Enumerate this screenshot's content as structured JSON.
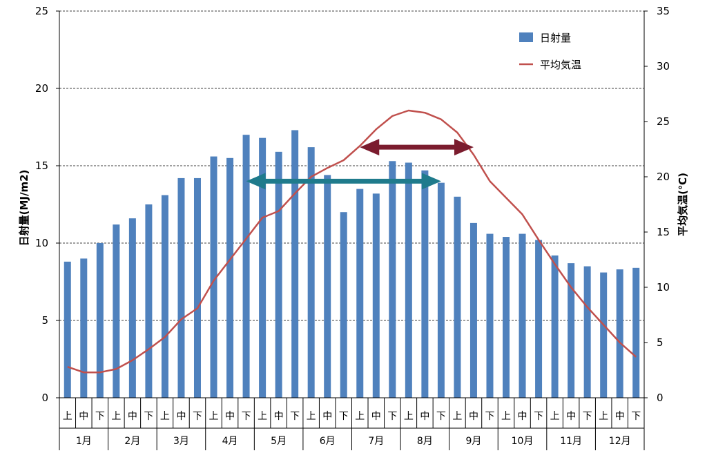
{
  "chart_data": {
    "type": "bar",
    "categories": [
      "上",
      "中",
      "下",
      "上",
      "中",
      "下",
      "上",
      "中",
      "下",
      "上",
      "中",
      "下",
      "上",
      "中",
      "下",
      "上",
      "中",
      "下",
      "上",
      "中",
      "下",
      "上",
      "中",
      "下",
      "上",
      "中",
      "下",
      "上",
      "中",
      "下",
      "上",
      "中",
      "下",
      "上",
      "中",
      "下"
    ],
    "months": [
      "1月",
      "2月",
      "3月",
      "4月",
      "5月",
      "6月",
      "7月",
      "8月",
      "9月",
      "10月",
      "11月",
      "12月"
    ],
    "series": [
      {
        "name": "日射量",
        "type": "bar",
        "axis": "left",
        "color": "#4f81bd",
        "values": [
          8.8,
          9.0,
          10.0,
          11.2,
          11.6,
          12.5,
          13.1,
          14.2,
          14.2,
          15.6,
          15.5,
          17.0,
          16.8,
          15.9,
          17.3,
          16.2,
          14.4,
          12.0,
          13.5,
          13.2,
          15.3,
          15.2,
          14.7,
          13.9,
          13.0,
          11.3,
          10.6,
          10.4,
          10.6,
          10.2,
          9.2,
          8.7,
          8.5,
          8.1,
          8.3,
          8.4
        ]
      },
      {
        "name": "平均気温",
        "type": "line",
        "axis": "right",
        "color": "#c0504d",
        "values": [
          2.8,
          2.3,
          2.3,
          2.6,
          3.4,
          4.4,
          5.5,
          7.1,
          8.1,
          10.6,
          12.5,
          14.4,
          16.3,
          16.9,
          18.5,
          20.0,
          20.8,
          21.5,
          22.8,
          24.3,
          25.5,
          26.0,
          25.8,
          25.2,
          24.0,
          22.0,
          19.6,
          18.1,
          16.6,
          14.3,
          12.1,
          10.0,
          8.2,
          6.6,
          5.0,
          3.7
        ]
      }
    ],
    "y_left": {
      "label": "日射量(MJ/m2)",
      "min": 0,
      "max": 25,
      "step": 5,
      "ticks": [
        "0",
        "5",
        "10",
        "15",
        "20",
        "25"
      ]
    },
    "y_right": {
      "label": "平均気温(℃)",
      "min": 0,
      "max": 35,
      "step": 5,
      "ticks": [
        "0",
        "5",
        "10",
        "15",
        "20",
        "25",
        "30",
        "35"
      ]
    },
    "grid": true,
    "legend_position": "top-right",
    "annotations": [
      {
        "type": "double-arrow",
        "color": "#1f7b8c",
        "from_category_index": 11,
        "to_category_index": 23,
        "y_left": 14.0
      },
      {
        "type": "double-arrow",
        "color": "#7b1c2e",
        "from_category_index": 18,
        "to_category_index": 25,
        "y_left": 16.2
      }
    ]
  }
}
